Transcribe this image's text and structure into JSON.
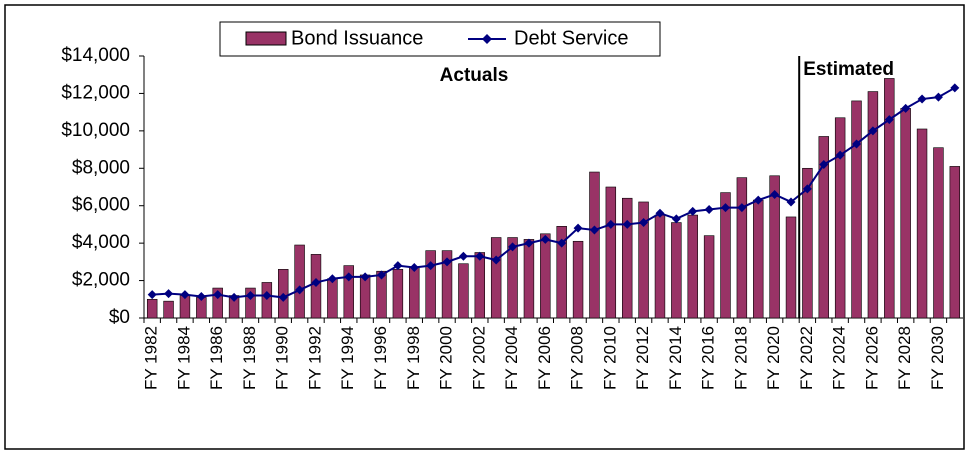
{
  "chart_data": {
    "type": "bar-line",
    "annotations": [
      "Actuals",
      "Estimated"
    ],
    "categories": [
      "FY 1982",
      null,
      "FY 1984",
      null,
      "FY 1986",
      null,
      "FY 1988",
      null,
      "FY 1990",
      null,
      "FY 1992",
      null,
      "FY 1994",
      null,
      "FY 1996",
      null,
      "FY 1998",
      null,
      "FY 2000",
      null,
      "FY 2002",
      null,
      "FY 2004",
      null,
      "FY 2006",
      null,
      "FY 2008",
      null,
      "FY 2010",
      null,
      "FY 2012",
      null,
      "FY 2014",
      null,
      "FY 2016",
      null,
      "FY 2018",
      null,
      "FY 2020",
      null,
      "FY 2022",
      null,
      "FY 2024",
      null,
      "FY 2026",
      null,
      "FY 2028",
      null,
      "FY 2030",
      null
    ],
    "series": [
      {
        "name": "Bond Issuance",
        "type": "bar",
        "color": "#993366",
        "values": [
          1000,
          900,
          1200,
          1100,
          1600,
          1200,
          1600,
          1900,
          2600,
          3900,
          3400,
          2100,
          2800,
          2300,
          2500,
          2600,
          2700,
          3600,
          3600,
          2900,
          3500,
          4300,
          4300,
          4200,
          4500,
          4900,
          4100,
          7800,
          7000,
          6400,
          6200,
          5500,
          5100,
          5500,
          4400,
          6700,
          7500,
          6300,
          7600,
          5400,
          8000,
          9700,
          10700,
          11600,
          12100,
          12800,
          11200,
          10100,
          9100,
          8100
        ]
      },
      {
        "name": "Debt Service",
        "type": "line",
        "color": "#000080",
        "values": [
          1250,
          1300,
          1250,
          1150,
          1250,
          1100,
          1200,
          1200,
          1100,
          1500,
          1900,
          2100,
          2200,
          2200,
          2300,
          2800,
          2700,
          2800,
          3000,
          3300,
          3300,
          3100,
          3800,
          4000,
          4200,
          4000,
          4800,
          4700,
          5000,
          5000,
          5100,
          5600,
          5300,
          5700,
          5800,
          5900,
          5900,
          6300,
          6600,
          6200,
          6900,
          8200,
          8700,
          9300,
          10000,
          10600,
          11200,
          11700,
          11800,
          12300
        ]
      }
    ],
    "ylim": [
      0,
      14000
    ],
    "yticks": [
      {
        "value": 0,
        "label": "$0"
      },
      {
        "value": 2000,
        "label": "$2,000"
      },
      {
        "value": 4000,
        "label": "$4,000"
      },
      {
        "value": 6000,
        "label": "$6,000"
      },
      {
        "value": 8000,
        "label": "$8,000"
      },
      {
        "value": 10000,
        "label": "$10,000"
      },
      {
        "value": 12000,
        "label": "$12,000"
      },
      {
        "value": 14000,
        "label": "$14,000"
      }
    ],
    "legend": "top"
  }
}
